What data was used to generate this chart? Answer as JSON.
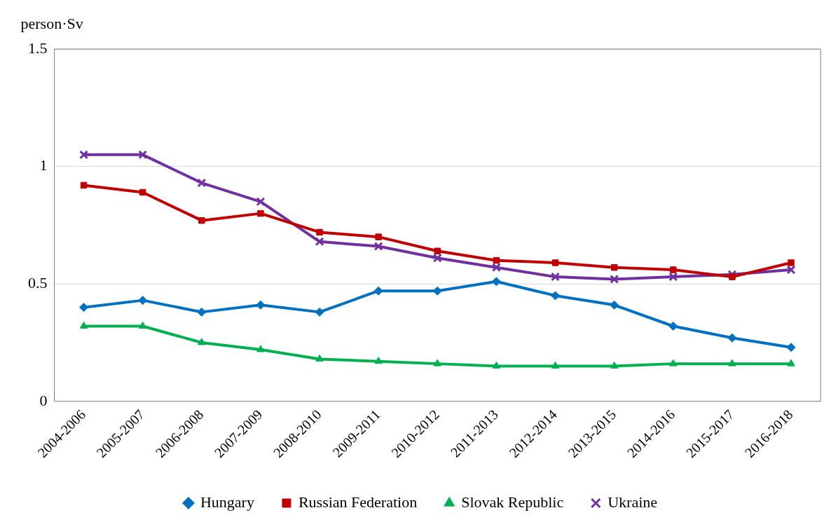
{
  "chart_data": {
    "type": "line",
    "ylabel": "person·Sv",
    "categories": [
      "2004-2006",
      "2005-2007",
      "2006-2008",
      "2007-2009",
      "2008-2010",
      "2009-2011",
      "2010-2012",
      "2011-2013",
      "2012-2014",
      "2013-2015",
      "2014-2016",
      "2015-2017",
      "2016-2018"
    ],
    "series": [
      {
        "name": "Hungary",
        "color": "#0070c0",
        "marker": "diamond",
        "values": [
          0.4,
          0.43,
          0.38,
          0.41,
          0.38,
          0.47,
          0.47,
          0.51,
          0.45,
          0.41,
          0.32,
          0.27,
          0.23
        ]
      },
      {
        "name": "Russian Federation",
        "color": "#c00000",
        "marker": "square",
        "values": [
          0.92,
          0.89,
          0.77,
          0.8,
          0.72,
          0.7,
          0.64,
          0.6,
          0.59,
          0.57,
          0.56,
          0.53,
          0.59
        ]
      },
      {
        "name": "Slovak Republic",
        "color": "#00b050",
        "marker": "triangle",
        "values": [
          0.32,
          0.32,
          0.25,
          0.22,
          0.18,
          0.17,
          0.16,
          0.15,
          0.15,
          0.15,
          0.16,
          0.16,
          0.16
        ]
      },
      {
        "name": "Ukraine",
        "color": "#7030a0",
        "marker": "cross",
        "values": [
          1.05,
          1.05,
          0.93,
          0.85,
          0.68,
          0.66,
          0.61,
          0.57,
          0.53,
          0.52,
          0.53,
          0.54,
          0.56
        ]
      }
    ],
    "ylim": [
      0,
      1.5
    ],
    "yticks": [
      0,
      0.5,
      1,
      1.5
    ],
    "grid": "y",
    "legend": "bottom",
    "line_style": "solid"
  }
}
